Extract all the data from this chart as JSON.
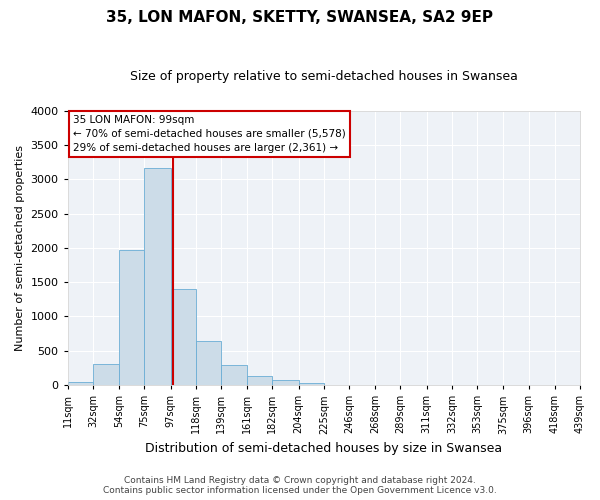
{
  "title": "35, LON MAFON, SKETTY, SWANSEA, SA2 9EP",
  "subtitle": "Size of property relative to semi-detached houses in Swansea",
  "xlabel": "Distribution of semi-detached houses by size in Swansea",
  "ylabel": "Number of semi-detached properties",
  "bin_edges": [
    11,
    32,
    54,
    75,
    97,
    118,
    139,
    161,
    182,
    204,
    225,
    246,
    268,
    289,
    311,
    332,
    353,
    375,
    396,
    418,
    439
  ],
  "bar_heights": [
    50,
    310,
    1970,
    3160,
    1400,
    650,
    300,
    130,
    70,
    30,
    5,
    5,
    0,
    0,
    0,
    0,
    0,
    0,
    0,
    0
  ],
  "bar_color": "#ccdce8",
  "bar_edge_color": "#6aadd5",
  "marker_value": 99,
  "marker_color": "#cc0000",
  "ylim": [
    0,
    4000
  ],
  "yticks": [
    0,
    500,
    1000,
    1500,
    2000,
    2500,
    3000,
    3500,
    4000
  ],
  "annotation_title": "35 LON MAFON: 99sqm",
  "annotation_line1": "← 70% of semi-detached houses are smaller (5,578)",
  "annotation_line2": "29% of semi-detached houses are larger (2,361) →",
  "footer_line1": "Contains HM Land Registry data © Crown copyright and database right 2024.",
  "footer_line2": "Contains public sector information licensed under the Open Government Licence v3.0.",
  "background_color": "#ffffff",
  "plot_bg_color": "#eef2f7",
  "grid_color": "#ffffff",
  "title_fontsize": 11,
  "subtitle_fontsize": 9,
  "ylabel_fontsize": 8,
  "xlabel_fontsize": 9,
  "tick_fontsize": 7,
  "ytick_fontsize": 8,
  "annotation_fontsize": 7.5,
  "footer_fontsize": 6.5
}
